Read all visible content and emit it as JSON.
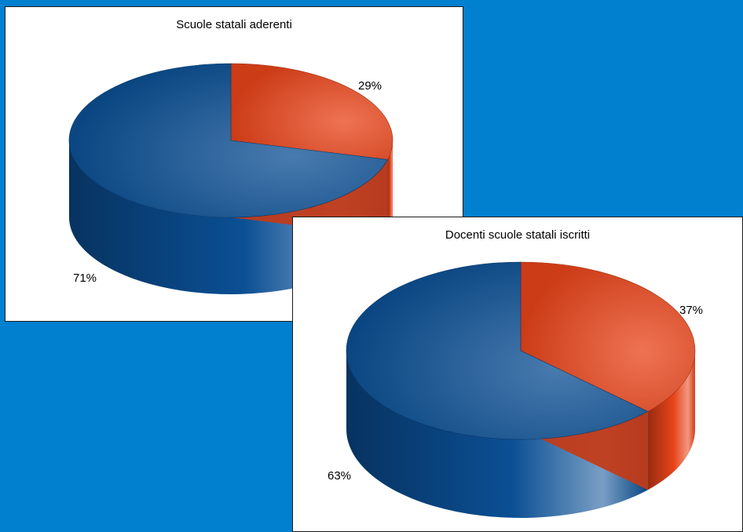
{
  "colors": {
    "background": "#0080CE",
    "series_blue": "#0B4F94",
    "series_orange": "#E8441A"
  },
  "chart_data": [
    {
      "type": "pie",
      "title": "Scuole statali aderenti",
      "slices": [
        {
          "label": "29%",
          "value": 29,
          "color": "#E8441A"
        },
        {
          "label": "71%",
          "value": 71,
          "color": "#0B4F94"
        }
      ]
    },
    {
      "type": "pie",
      "title": "Docenti scuole statali iscritti",
      "slices": [
        {
          "label": "37%",
          "value": 37,
          "color": "#E8441A"
        },
        {
          "label": "63%",
          "value": 63,
          "color": "#0B4F94"
        }
      ]
    }
  ]
}
